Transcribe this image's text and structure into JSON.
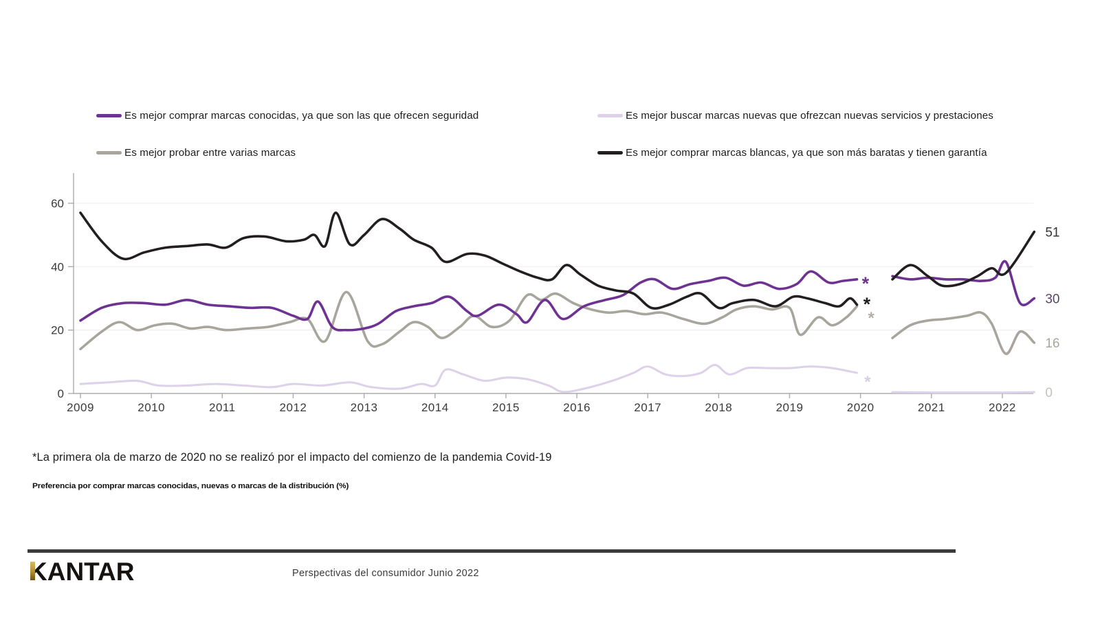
{
  "legend": {
    "items": [
      {
        "label": "Es mejor comprar marcas conocidas, ya que son las que ofrecen seguridad",
        "color": "#6e3292"
      },
      {
        "label": "Es mejor probar entre varias marcas",
        "color": "#a8a59c"
      },
      {
        "label": "Es mejor buscar marcas nuevas que ofrezcan nuevas servicios y prestaciones",
        "color": "#ddd2e9"
      },
      {
        "label": "Es mejor comprar marcas blancas, ya que son más baratas y tienen garantía",
        "color": "#231f20"
      }
    ]
  },
  "chart_data": {
    "type": "line",
    "title": "Preferencia por comprar marcas conocidas, nuevas o marcas de la distribución (%)",
    "xlabel": "",
    "ylabel": "",
    "grid": "horizontal-light",
    "legend_position": "top",
    "x_axis": {
      "ticks": [
        2009,
        2010,
        2011,
        2012,
        2013,
        2014,
        2015,
        2016,
        2017,
        2018,
        2019,
        2020,
        2021,
        2022
      ],
      "range": [
        2008.9,
        2022.6
      ]
    },
    "y_axis": {
      "ticks": [
        0,
        20,
        40,
        60
      ],
      "range": [
        0,
        63
      ],
      "unit": "%"
    },
    "gap_note": "No wave in March 2020 (Covid-19); lines break between early 2020 and mid 2020",
    "series": [
      {
        "name": "Es mejor buscar marcas nuevas que ofrezcan nuevas servicios y prestaciones",
        "color": "#ddd2e9",
        "width": 3.1,
        "end_label": "0",
        "end_label_color": "#c6c1ba",
        "segments": [
          [
            [
              2009.0,
              3
            ],
            [
              2009.4,
              3.5
            ],
            [
              2009.8,
              4
            ],
            [
              2010.1,
              2.5
            ],
            [
              2010.5,
              2.5
            ],
            [
              2010.9,
              3
            ],
            [
              2011.3,
              2.5
            ],
            [
              2011.7,
              2
            ],
            [
              2012.0,
              3
            ],
            [
              2012.4,
              2.5
            ],
            [
              2012.8,
              3.5
            ],
            [
              2013.1,
              2
            ],
            [
              2013.5,
              1.5
            ],
            [
              2013.8,
              3
            ],
            [
              2014.0,
              2.5
            ],
            [
              2014.15,
              7.5
            ],
            [
              2014.4,
              6
            ],
            [
              2014.7,
              4
            ],
            [
              2015.0,
              5
            ],
            [
              2015.3,
              4.5
            ],
            [
              2015.6,
              2.5
            ],
            [
              2015.8,
              0.5
            ],
            [
              2016.1,
              1.5
            ],
            [
              2016.5,
              4
            ],
            [
              2016.8,
              6.5
            ],
            [
              2017.0,
              8.5
            ],
            [
              2017.25,
              6
            ],
            [
              2017.5,
              5.5
            ],
            [
              2017.75,
              6.5
            ],
            [
              2017.95,
              9
            ],
            [
              2018.15,
              6
            ],
            [
              2018.4,
              8
            ],
            [
              2018.7,
              8
            ],
            [
              2019.0,
              8
            ],
            [
              2019.3,
              8.5
            ],
            [
              2019.6,
              8
            ],
            [
              2019.95,
              6.5
            ]
          ],
          [
            [
              2020.45,
              0.4
            ],
            [
              2021.0,
              0.3
            ],
            [
              2021.5,
              0.3
            ],
            [
              2022.0,
              0.3
            ],
            [
              2022.45,
              0.4
            ]
          ]
        ]
      },
      {
        "name": "Es mejor probar entre varias marcas",
        "color": "#a8a59c",
        "width": 3.6,
        "end_label": "16",
        "end_label_color": "#a8a59c",
        "segments": [
          [
            [
              2009.0,
              14
            ],
            [
              2009.3,
              19.5
            ],
            [
              2009.55,
              22.5
            ],
            [
              2009.8,
              20
            ],
            [
              2010.05,
              21.5
            ],
            [
              2010.3,
              22
            ],
            [
              2010.55,
              20.5
            ],
            [
              2010.8,
              21
            ],
            [
              2011.05,
              20
            ],
            [
              2011.35,
              20.5
            ],
            [
              2011.65,
              21
            ],
            [
              2011.95,
              22.5
            ],
            [
              2012.2,
              23.5
            ],
            [
              2012.45,
              16.5
            ],
            [
              2012.75,
              32
            ],
            [
              2013.05,
              16.5
            ],
            [
              2013.25,
              15.5
            ],
            [
              2013.5,
              19.5
            ],
            [
              2013.7,
              22.5
            ],
            [
              2013.9,
              21
            ],
            [
              2014.1,
              17.5
            ],
            [
              2014.35,
              21
            ],
            [
              2014.55,
              24.5
            ],
            [
              2014.8,
              21
            ],
            [
              2015.05,
              23
            ],
            [
              2015.3,
              31
            ],
            [
              2015.5,
              29.5
            ],
            [
              2015.7,
              31.5
            ],
            [
              2015.95,
              28.5
            ],
            [
              2016.2,
              26.5
            ],
            [
              2016.45,
              25.5
            ],
            [
              2016.7,
              26
            ],
            [
              2016.95,
              25
            ],
            [
              2017.2,
              25.5
            ],
            [
              2017.5,
              23.5
            ],
            [
              2017.8,
              22
            ],
            [
              2018.05,
              24
            ],
            [
              2018.25,
              26.5
            ],
            [
              2018.5,
              27.5
            ],
            [
              2018.75,
              26.5
            ],
            [
              2019.0,
              27
            ],
            [
              2019.15,
              18.5
            ],
            [
              2019.4,
              24
            ],
            [
              2019.6,
              21.5
            ],
            [
              2019.8,
              24
            ],
            [
              2019.95,
              27.5
            ]
          ],
          [
            [
              2020.45,
              17.5
            ],
            [
              2020.7,
              21.5
            ],
            [
              2020.95,
              23
            ],
            [
              2021.2,
              23.5
            ],
            [
              2021.5,
              24.5
            ],
            [
              2021.7,
              25.5
            ],
            [
              2021.85,
              22
            ],
            [
              2022.05,
              12.5
            ],
            [
              2022.25,
              19.5
            ],
            [
              2022.45,
              16
            ]
          ]
        ]
      },
      {
        "name": "Es mejor comprar marcas conocidas, ya que son las que ofrecen seguridad",
        "color": "#6e3292",
        "width": 3.6,
        "end_label": "30",
        "end_label_color": "#5a4263",
        "segments": [
          [
            [
              2009.0,
              23
            ],
            [
              2009.3,
              27
            ],
            [
              2009.6,
              28.5
            ],
            [
              2009.9,
              28.5
            ],
            [
              2010.2,
              28
            ],
            [
              2010.5,
              29.5
            ],
            [
              2010.8,
              28
            ],
            [
              2011.1,
              27.5
            ],
            [
              2011.4,
              27
            ],
            [
              2011.7,
              27
            ],
            [
              2012.0,
              24.5
            ],
            [
              2012.2,
              23.5
            ],
            [
              2012.35,
              29
            ],
            [
              2012.55,
              21
            ],
            [
              2012.75,
              20
            ],
            [
              2013.0,
              20.5
            ],
            [
              2013.2,
              22
            ],
            [
              2013.45,
              26
            ],
            [
              2013.7,
              27.5
            ],
            [
              2013.95,
              28.5
            ],
            [
              2014.2,
              30.5
            ],
            [
              2014.45,
              26
            ],
            [
              2014.6,
              24.5
            ],
            [
              2014.9,
              28
            ],
            [
              2015.15,
              25
            ],
            [
              2015.3,
              22.5
            ],
            [
              2015.55,
              29.5
            ],
            [
              2015.8,
              23.5
            ],
            [
              2016.1,
              27.5
            ],
            [
              2016.4,
              29.5
            ],
            [
              2016.65,
              31
            ],
            [
              2016.9,
              35
            ],
            [
              2017.1,
              36
            ],
            [
              2017.35,
              33
            ],
            [
              2017.6,
              34.5
            ],
            [
              2017.85,
              35.5
            ],
            [
              2018.1,
              36.5
            ],
            [
              2018.35,
              34
            ],
            [
              2018.6,
              35
            ],
            [
              2018.85,
              33
            ],
            [
              2019.1,
              34.5
            ],
            [
              2019.3,
              38.5
            ],
            [
              2019.55,
              35
            ],
            [
              2019.75,
              35.5
            ],
            [
              2019.95,
              36
            ]
          ],
          [
            [
              2020.45,
              37
            ],
            [
              2020.7,
              36
            ],
            [
              2020.95,
              36.5
            ],
            [
              2021.2,
              36
            ],
            [
              2021.45,
              36
            ],
            [
              2021.7,
              35.5
            ],
            [
              2021.9,
              36.5
            ],
            [
              2022.05,
              41.5
            ],
            [
              2022.25,
              28.5
            ],
            [
              2022.45,
              30
            ]
          ]
        ]
      },
      {
        "name": "Es mejor comprar marcas blancas, ya que son más baratas y tienen garantía",
        "color": "#231f20",
        "width": 3.6,
        "end_label": "51",
        "end_label_color": "#333333",
        "segments": [
          [
            [
              2009.0,
              57
            ],
            [
              2009.3,
              48
            ],
            [
              2009.6,
              42.5
            ],
            [
              2009.9,
              44.5
            ],
            [
              2010.2,
              46
            ],
            [
              2010.5,
              46.5
            ],
            [
              2010.8,
              47
            ],
            [
              2011.05,
              46
            ],
            [
              2011.3,
              49
            ],
            [
              2011.6,
              49.5
            ],
            [
              2011.9,
              48
            ],
            [
              2012.15,
              48.5
            ],
            [
              2012.3,
              50
            ],
            [
              2012.45,
              46.5
            ],
            [
              2012.6,
              57
            ],
            [
              2012.8,
              47
            ],
            [
              2013.0,
              50
            ],
            [
              2013.25,
              55
            ],
            [
              2013.5,
              52
            ],
            [
              2013.7,
              48.5
            ],
            [
              2013.95,
              46
            ],
            [
              2014.15,
              41.5
            ],
            [
              2014.45,
              44
            ],
            [
              2014.7,
              43.5
            ],
            [
              2014.95,
              41
            ],
            [
              2015.2,
              38.5
            ],
            [
              2015.45,
              36.5
            ],
            [
              2015.65,
              36
            ],
            [
              2015.85,
              40.5
            ],
            [
              2016.05,
              37.5
            ],
            [
              2016.3,
              34
            ],
            [
              2016.55,
              32.5
            ],
            [
              2016.8,
              31.5
            ],
            [
              2017.05,
              27
            ],
            [
              2017.3,
              28
            ],
            [
              2017.55,
              30.5
            ],
            [
              2017.75,
              31.5
            ],
            [
              2018.0,
              27
            ],
            [
              2018.2,
              28.5
            ],
            [
              2018.5,
              29.5
            ],
            [
              2018.8,
              27.5
            ],
            [
              2019.05,
              30.5
            ],
            [
              2019.25,
              30
            ],
            [
              2019.5,
              28.5
            ],
            [
              2019.7,
              27.5
            ],
            [
              2019.85,
              30
            ],
            [
              2019.95,
              28
            ]
          ],
          [
            [
              2020.45,
              36
            ],
            [
              2020.7,
              40.5
            ],
            [
              2020.95,
              37
            ],
            [
              2021.15,
              34
            ],
            [
              2021.4,
              34.5
            ],
            [
              2021.65,
              37
            ],
            [
              2021.85,
              39.5
            ],
            [
              2022.05,
              38
            ],
            [
              2022.45,
              51
            ]
          ]
        ]
      }
    ],
    "annotations": {
      "asterisks": [
        {
          "x": 2020.07,
          "value": 32.7,
          "color": "#6e3292",
          "size": 27
        },
        {
          "x": 2020.09,
          "value": 26.2,
          "color": "#231f20",
          "size": 27
        },
        {
          "x": 2020.15,
          "value": 22.1,
          "color": "#b3b0a8",
          "size": 24
        },
        {
          "x": 2020.1,
          "value": 1.9,
          "color": "#d8cfe2",
          "size": 24
        }
      ]
    }
  },
  "footnotes": {
    "covid_note": "*La primera ola de marzo de 2020 no se realizó por el impacto del comienzo de la pandemia Covid-19",
    "subtitle": "Preferencia por comprar marcas conocidas, nuevas o marcas de la distribución  (%)"
  },
  "footer": {
    "logo_text": "KANTAR",
    "caption": "Perspectivas del consumidor Junio 2022"
  }
}
